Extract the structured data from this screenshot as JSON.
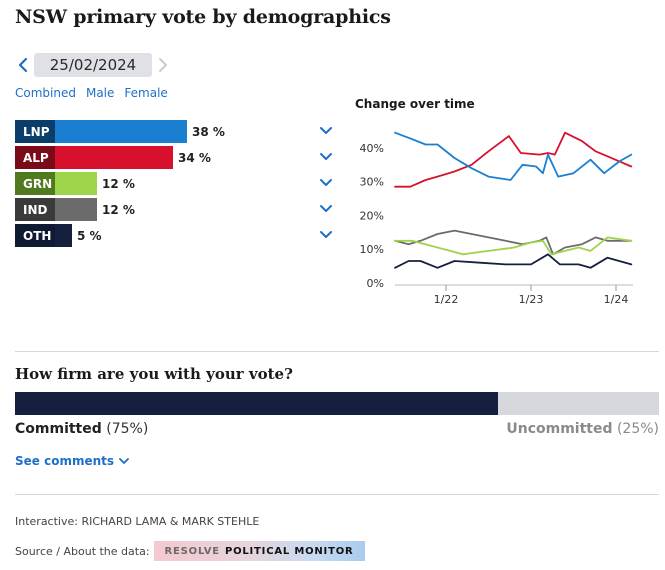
{
  "title": "NSW primary vote by demographics",
  "date": "25/02/2024",
  "tabs": [
    "Combined",
    "Male",
    "Female"
  ],
  "active_tab": 0,
  "parties": [
    {
      "name": "LNP",
      "pct": 38,
      "pct_label": "38 %",
      "label_color": "#0b3d6b",
      "bar_color": "#1a7fd0"
    },
    {
      "name": "ALP",
      "pct": 34,
      "pct_label": "34 %",
      "label_color": "#7a0a18",
      "bar_color": "#d7102e"
    },
    {
      "name": "GRN",
      "pct": 12,
      "pct_label": "12 %",
      "label_color": "#4f7a1d",
      "bar_color": "#9dd44a"
    },
    {
      "name": "IND",
      "pct": 12,
      "pct_label": "12 %",
      "label_color": "#3a3a3a",
      "bar_color": "#6b6b6b"
    },
    {
      "name": "OTH",
      "pct": 5,
      "pct_label": "5 %",
      "label_color": "#0f1a33",
      "bar_color": "#15203f"
    }
  ],
  "chart_data": {
    "type": "line",
    "title": "Change over time",
    "x_ticks": [
      {
        "label": "1/22",
        "x": 3
      },
      {
        "label": "1/23",
        "x": 8
      },
      {
        "label": "1/24",
        "x": 13
      }
    ],
    "y_ticks": [
      "0%",
      "10%",
      "20%",
      "30%",
      "40%"
    ],
    "ylim": [
      0,
      45
    ],
    "xlim": [
      0,
      14
    ],
    "series": [
      {
        "name": "LNP",
        "color": "#1a7fd0",
        "points": [
          [
            0,
            44.5
          ],
          [
            0.8,
            43
          ],
          [
            1.8,
            41
          ],
          [
            2.5,
            41
          ],
          [
            3.5,
            37
          ],
          [
            4.5,
            34
          ],
          [
            5.5,
            31.5
          ],
          [
            6.8,
            30.5
          ],
          [
            7.5,
            35
          ],
          [
            8.3,
            34.5
          ],
          [
            8.7,
            32.5
          ],
          [
            9,
            38
          ],
          [
            9.6,
            31.5
          ],
          [
            10.5,
            32.5
          ],
          [
            11.5,
            36.5
          ],
          [
            12.3,
            32.5
          ],
          [
            13.2,
            36
          ],
          [
            13.9,
            38
          ]
        ]
      },
      {
        "name": "ALP",
        "color": "#d7102e",
        "points": [
          [
            0,
            28.5
          ],
          [
            0.9,
            28.5
          ],
          [
            1.8,
            30.5
          ],
          [
            2.5,
            31.5
          ],
          [
            3.5,
            33
          ],
          [
            4.5,
            35
          ],
          [
            5.5,
            39
          ],
          [
            6.7,
            43.5
          ],
          [
            7.4,
            38.5
          ],
          [
            8.5,
            38
          ],
          [
            9,
            38.5
          ],
          [
            9.4,
            38
          ],
          [
            10,
            44.5
          ],
          [
            11,
            42
          ],
          [
            11.8,
            39
          ],
          [
            12.5,
            37.5
          ],
          [
            13.2,
            36
          ],
          [
            13.9,
            34.5
          ]
        ]
      },
      {
        "name": "GRN",
        "color": "#9dd44a",
        "points": [
          [
            0,
            12.5
          ],
          [
            1,
            12.5
          ],
          [
            2.5,
            10.5
          ],
          [
            4,
            8.5
          ],
          [
            5.5,
            9.5
          ],
          [
            7,
            10.5
          ],
          [
            8,
            12
          ],
          [
            8.7,
            12.5
          ],
          [
            9.2,
            8.5
          ],
          [
            10,
            9.5
          ],
          [
            10.8,
            10.5
          ],
          [
            11.5,
            9.5
          ],
          [
            12.5,
            13.5
          ],
          [
            13.9,
            12.5
          ]
        ]
      },
      {
        "name": "IND",
        "color": "#6b6b6b",
        "points": [
          [
            0,
            12.5
          ],
          [
            0.8,
            11.5
          ],
          [
            1.5,
            12.5
          ],
          [
            2.5,
            14.5
          ],
          [
            3.5,
            15.5
          ],
          [
            4.5,
            14.5
          ],
          [
            5.5,
            13.5
          ],
          [
            6.5,
            12.5
          ],
          [
            7.5,
            11.5
          ],
          [
            8.5,
            12.5
          ],
          [
            8.9,
            13.5
          ],
          [
            9.3,
            8.5
          ],
          [
            10,
            10.5
          ],
          [
            11,
            11.5
          ],
          [
            11.8,
            13.5
          ],
          [
            12.5,
            12.5
          ],
          [
            13.9,
            12.5
          ]
        ]
      },
      {
        "name": "OTH",
        "color": "#15203f",
        "points": [
          [
            0,
            4.5
          ],
          [
            0.8,
            6.5
          ],
          [
            1.5,
            6.5
          ],
          [
            2.5,
            4.5
          ],
          [
            3.5,
            6.5
          ],
          [
            5,
            6
          ],
          [
            6.5,
            5.5
          ],
          [
            8,
            5.5
          ],
          [
            9,
            8.5
          ],
          [
            9.7,
            5.5
          ],
          [
            10.8,
            5.5
          ],
          [
            11.5,
            4.5
          ],
          [
            12.5,
            7.5
          ],
          [
            13.9,
            5.5
          ]
        ]
      }
    ]
  },
  "firmness": {
    "question": "How firm are you with your vote?",
    "committed_label": "Committed",
    "committed_pct": 75,
    "committed_pct_label": "(75%)",
    "uncommitted_label": "Uncommitted",
    "uncommitted_pct": 25,
    "uncommitted_pct_label": "(25%)"
  },
  "see_comments": "See comments",
  "credit": "Interactive: RICHARD LAMA & MARK STEHLE",
  "source_label": "Source / About the data:",
  "source_badge_1": "RESOLVE",
  "source_badge_2": "POLITICAL MONITOR",
  "accent": "#1f6fc9"
}
